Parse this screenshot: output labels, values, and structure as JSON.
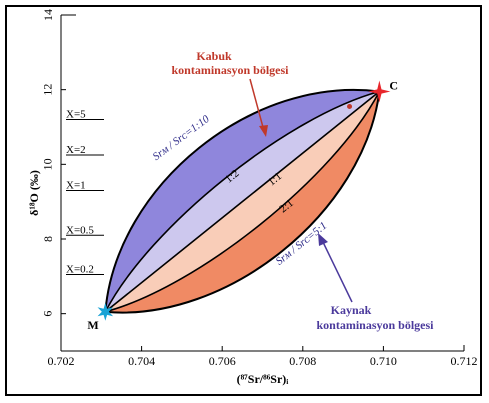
{
  "chart_data": {
    "type": "mixing-curves",
    "xlabel": "(⁸⁷Sr/⁸⁶Sr)ᵢ",
    "ylabel": "δ¹⁸O (‰)",
    "xlim": [
      0.702,
      0.712
    ],
    "ylim": [
      5,
      14
    ],
    "xticks": [
      {
        "v": 0.702,
        "label": "0.702"
      },
      {
        "v": 0.704,
        "label": "0.704"
      },
      {
        "v": 0.706,
        "label": "0.706"
      },
      {
        "v": 0.708,
        "label": "0.708"
      },
      {
        "v": 0.71,
        "label": "0.710"
      },
      {
        "v": 0.712,
        "label": "0.712"
      }
    ],
    "yticks": [
      {
        "v": 6,
        "label": "6"
      },
      {
        "v": 8,
        "label": "8"
      },
      {
        "v": 10,
        "label": "10"
      },
      {
        "v": 12,
        "label": "12"
      },
      {
        "v": 14,
        "label": "14"
      }
    ],
    "endmembers": [
      {
        "id": "M",
        "label": "M",
        "x": 0.7031,
        "y": 6.05,
        "color": "#19a3d6"
      },
      {
        "id": "C",
        "label": "C",
        "x": 0.7099,
        "y": 11.95,
        "color": "#e8262b"
      }
    ],
    "curves": [
      {
        "ratio": 5,
        "label": "Srᴍ / Srᴄ=5:1",
        "bend": 0.92
      },
      {
        "ratio": 2,
        "label": "2:1",
        "bend": 0.42
      },
      {
        "ratio": 1,
        "label": "1:1",
        "bend": 0.0
      },
      {
        "ratio": 0.5,
        "label": "1:2",
        "bend": -0.42
      },
      {
        "ratio": 0.1,
        "label": "Srᴍ / Srᴄ=1:10",
        "bend": -1.0
      }
    ],
    "x_marks": [
      {
        "label": "X=5",
        "y": 11.2
      },
      {
        "label": "X=2",
        "y": 10.25
      },
      {
        "label": "X=1",
        "y": 9.3
      },
      {
        "label": "X=0.5",
        "y": 8.1
      },
      {
        "label": "X=0.2",
        "y": 7.05
      }
    ],
    "sample": {
      "x": 0.70916,
      "y": 11.55,
      "color": "#c0392b"
    },
    "regions": [
      {
        "id": "crust",
        "title_line1": "Kabuk",
        "title_line2": "kontaminasyon bölgesi",
        "color": "#c0392b"
      },
      {
        "id": "source",
        "title_line1": "Kaynak",
        "title_line2": "kontaminasyon bölgesi",
        "color": "#4b3a9c"
      }
    ],
    "colors": {
      "crust_dark": "#f08a64",
      "crust_light": "#f9cdb8",
      "source_light": "#cdc8ee",
      "source_dark": "#8f86dc",
      "curve": "#000000",
      "star_m": "#19a3d6",
      "star_c": "#e8262b"
    },
    "grid": false
  }
}
